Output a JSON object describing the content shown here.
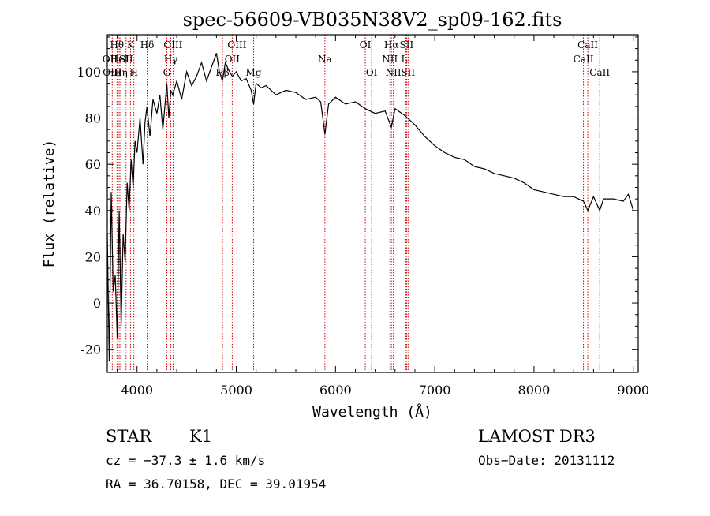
{
  "chart_data": {
    "type": "line",
    "title": "spec-56609-VB035N38V2_sp09-162.fits",
    "xlabel": "Wavelength (Å)",
    "ylabel": "Flux (relative)",
    "xlim": [
      3700,
      9050
    ],
    "ylim": [
      -30,
      116
    ],
    "x_ticks": [
      4000,
      5000,
      6000,
      7000,
      8000,
      9000
    ],
    "y_ticks": [
      -20,
      0,
      20,
      40,
      60,
      80,
      100
    ],
    "line_color": "#000000",
    "marker_color": "#cc0000",
    "series": [
      {
        "name": "Flux",
        "x": [
          3700,
          3720,
          3740,
          3760,
          3780,
          3800,
          3820,
          3840,
          3860,
          3880,
          3900,
          3920,
          3940,
          3960,
          3980,
          4000,
          4030,
          4060,
          4080,
          4100,
          4130,
          4160,
          4200,
          4230,
          4260,
          4300,
          4320,
          4340,
          4360,
          4400,
          4450,
          4500,
          4550,
          4600,
          4650,
          4700,
          4750,
          4800,
          4830,
          4861,
          4890,
          4920,
          4960,
          5000,
          5050,
          5100,
          5150,
          5175,
          5200,
          5250,
          5300,
          5400,
          5500,
          5600,
          5700,
          5800,
          5850,
          5893,
          5930,
          6000,
          6100,
          6200,
          6300,
          6400,
          6500,
          6563,
          6600,
          6700,
          6800,
          6900,
          7000,
          7100,
          7200,
          7300,
          7400,
          7500,
          7600,
          7700,
          7800,
          7900,
          8000,
          8100,
          8200,
          8300,
          8400,
          8498,
          8542,
          8600,
          8662,
          8700,
          8800,
          8900,
          8950,
          8980,
          9000
        ],
        "y": [
          30,
          -25,
          48,
          5,
          12,
          -15,
          40,
          -10,
          30,
          18,
          52,
          40,
          62,
          50,
          70,
          65,
          80,
          60,
          78,
          85,
          72,
          88,
          82,
          90,
          75,
          95,
          80,
          92,
          90,
          96,
          88,
          100,
          94,
          98,
          104,
          96,
          102,
          108,
          100,
          96,
          104,
          101,
          98,
          100,
          96,
          97,
          92,
          86,
          95,
          93,
          94,
          90,
          92,
          91,
          88,
          89,
          87,
          73,
          86,
          89,
          86,
          87,
          84,
          82,
          83,
          76,
          84,
          81,
          77,
          72,
          68,
          65,
          63,
          62,
          59,
          58,
          56,
          55,
          54,
          52,
          49,
          48,
          47,
          46,
          46,
          44,
          40,
          46,
          40,
          45,
          45,
          44,
          47,
          43,
          40
        ]
      }
    ],
    "lines": [
      {
        "w": 3727,
        "label": "OII",
        "row": 1
      },
      {
        "w": 3750,
        "label": "OIII",
        "row": 2
      },
      {
        "w": 3798,
        "label": "Hθ",
        "row": 0
      },
      {
        "w": 3820,
        "label": "HeI",
        "row": 1
      },
      {
        "w": 3835,
        "label": "Hη",
        "row": 2
      },
      {
        "w": 3889,
        "label": "SII",
        "row": 1
      },
      {
        "w": 3934,
        "label": "K",
        "row": 0
      },
      {
        "w": 3968,
        "label": "H",
        "row": 2
      },
      {
        "w": 4102,
        "label": "Hδ",
        "row": 0
      },
      {
        "w": 4300,
        "label": "G",
        "row": 2
      },
      {
        "w": 4340,
        "label": "Hγ",
        "row": 1
      },
      {
        "w": 4363,
        "label": "OIII",
        "row": 0
      },
      {
        "w": 4861,
        "label": "Hβ",
        "row": 2
      },
      {
        "w": 4959,
        "label": "OII",
        "row": 1
      },
      {
        "w": 5007,
        "label": "OIII",
        "row": 0
      },
      {
        "w": 5175,
        "label": "Mg",
        "row": 2
      },
      {
        "w": 5893,
        "label": "Na",
        "row": 1
      },
      {
        "w": 6300,
        "label": "OI",
        "row": 0
      },
      {
        "w": 6364,
        "label": "OI",
        "row": 2
      },
      {
        "w": 6548,
        "label": "NII",
        "row": 1
      },
      {
        "w": 6563,
        "label": "Hα",
        "row": 0
      },
      {
        "w": 6583,
        "label": "NII",
        "row": 2
      },
      {
        "w": 6708,
        "label": "Li",
        "row": 1
      },
      {
        "w": 6716,
        "label": "SII",
        "row": 0
      },
      {
        "w": 6731,
        "label": "SII",
        "row": 2
      },
      {
        "w": 8498,
        "label": "CaII",
        "row": 1
      },
      {
        "w": 8542,
        "label": "CaII",
        "row": 0
      },
      {
        "w": 8662,
        "label": "CaII",
        "row": 2
      }
    ]
  },
  "info": {
    "object_class": "STAR",
    "subclass": "K1",
    "survey": "LAMOST DR3",
    "cz": "cz = −37.3 ± 1.6 km/s",
    "obs_date": "Obs−Date: 20131112",
    "coords": "RA =  36.70158, DEC =  39.01954"
  }
}
